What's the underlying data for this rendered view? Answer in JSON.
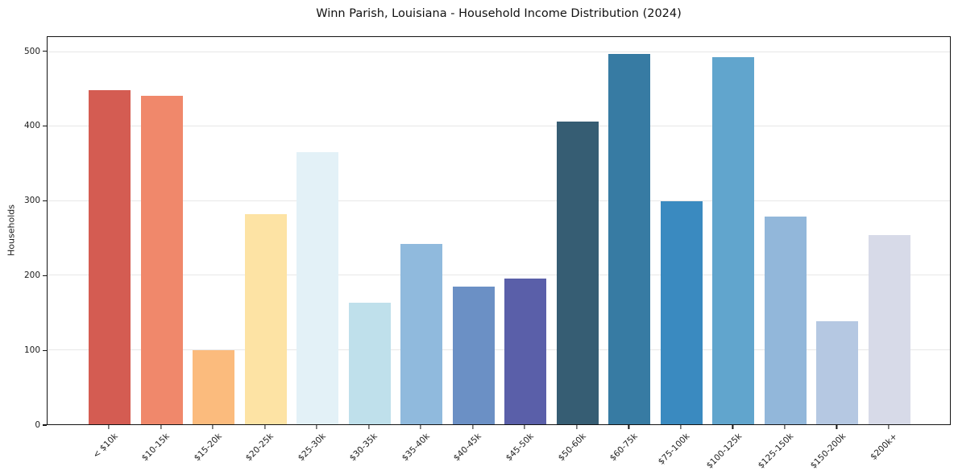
{
  "chart_data": {
    "type": "bar",
    "title": "Winn Parish, Louisiana - Household Income Distribution (2024)",
    "xlabel": "",
    "ylabel": "Households",
    "categories": [
      "< $10k",
      "$10-15k",
      "$15-20k",
      "$20-25k",
      "$25-30k",
      "$30-35k",
      "$35-40k",
      "$40-45k",
      "$45-50k",
      "$50-60k",
      "$60-75k",
      "$75-100k",
      "$100-125k",
      "$125-150k",
      "$150-200k",
      "$200k+"
    ],
    "values": [
      449,
      441,
      99,
      282,
      365,
      163,
      242,
      185,
      196,
      407,
      497,
      300,
      493,
      279,
      138,
      254
    ],
    "bar_colors": [
      "#d45c52",
      "#f0886b",
      "#fbbb7d",
      "#fde3a4",
      "#e3f1f7",
      "#bfe0eb",
      "#90badd",
      "#6b90c5",
      "#5a5fa9",
      "#365d73",
      "#377ba3",
      "#3a8ac0",
      "#61a5cd",
      "#92b7da",
      "#b5c8e2",
      "#d7dae8"
    ],
    "yticks": [
      0,
      100,
      200,
      300,
      400,
      500
    ],
    "ylim": [
      0,
      520
    ],
    "grid": "horizontal",
    "legend": "none",
    "x_tick_label_rotation_deg": 45
  },
  "colors": {
    "background": "#ffffff",
    "axis": "#141414",
    "grid": "#e7e7e7",
    "tick_label": "#1c1c1c",
    "title": "#111111"
  }
}
